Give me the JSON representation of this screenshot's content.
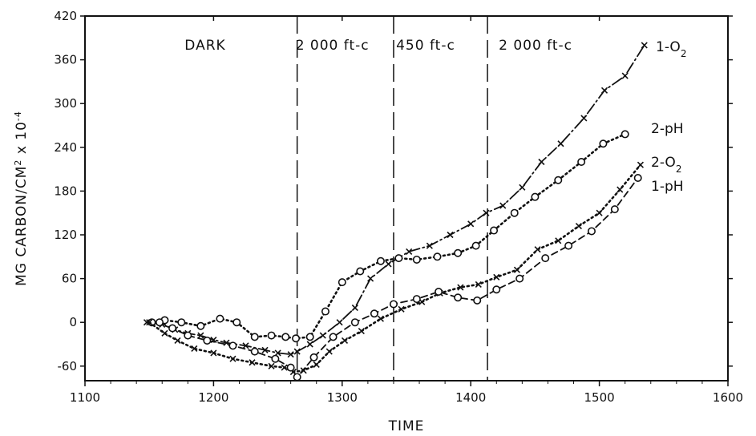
{
  "chart_data": {
    "type": "line",
    "title": "",
    "xlabel": "TIME",
    "ylabel_parts": {
      "main": "MG CARBON",
      "slash": "/",
      "unit": "CM",
      "unit_sup": "2",
      "mult": " x 10",
      "mult_sup": "-4"
    },
    "xlim": [
      1100,
      1600
    ],
    "ylim": [
      -80,
      420
    ],
    "x_ticks": [
      1100,
      1200,
      1300,
      1400,
      1500,
      1600
    ],
    "x_tick_labels": [
      "1100",
      "1200",
      "1300",
      "1400",
      "1500",
      "1600"
    ],
    "y_ticks": [
      -60,
      0,
      60,
      120,
      180,
      240,
      300,
      360,
      420
    ],
    "y_tick_labels": [
      "-60",
      "0",
      "60",
      "120",
      "180",
      "240",
      "300",
      "360",
      "420"
    ],
    "grid": false,
    "regions": [
      {
        "label": "DARK",
        "x_start": 1100,
        "x_end": 1265
      },
      {
        "label": "2 000 ft-c",
        "x_start": 1265,
        "x_end": 1340
      },
      {
        "label": "450 ft-c",
        "x_start": 1340,
        "x_end": 1413
      },
      {
        "label": "2 000 ft-c",
        "x_start": 1413,
        "x_end": 1600
      }
    ],
    "dividers_x": [
      1265,
      1340,
      1413
    ],
    "series": [
      {
        "name": "1-O",
        "name_sub": "2",
        "marker": "x",
        "line": "dashdot",
        "x": [
          1148,
          1160,
          1170,
          1180,
          1190,
          1200,
          1210,
          1225,
          1240,
          1250,
          1260,
          1265,
          1275,
          1285,
          1298,
          1310,
          1322,
          1336,
          1352,
          1368,
          1384,
          1400,
          1412,
          1425,
          1440,
          1455,
          1470,
          1488,
          1504,
          1520,
          1535
        ],
        "y": [
          0,
          -3,
          -10,
          -15,
          -18,
          -24,
          -28,
          -32,
          -38,
          -42,
          -44,
          -40,
          -30,
          -18,
          0,
          20,
          60,
          80,
          97,
          105,
          120,
          135,
          150,
          160,
          185,
          220,
          245,
          280,
          318,
          338,
          380
        ]
      },
      {
        "name": "2-pH",
        "marker": "o",
        "line": "dotted",
        "x": [
          1152,
          1162,
          1175,
          1190,
          1205,
          1218,
          1232,
          1245,
          1256,
          1264,
          1275,
          1287,
          1300,
          1314,
          1330,
          1344,
          1358,
          1374,
          1390,
          1404,
          1418,
          1434,
          1450,
          1468,
          1486,
          1503,
          1520
        ],
        "y": [
          0,
          3,
          0,
          -5,
          5,
          0,
          -20,
          -18,
          -20,
          -22,
          -20,
          15,
          55,
          70,
          84,
          88,
          86,
          90,
          95,
          105,
          126,
          150,
          172,
          195,
          220,
          245,
          258
        ]
      },
      {
        "name": "2-O",
        "name_sub": "2",
        "marker": "x",
        "line": "dotted",
        "x": [
          1150,
          1162,
          1172,
          1185,
          1200,
          1215,
          1230,
          1245,
          1255,
          1262,
          1270,
          1280,
          1290,
          1302,
          1315,
          1330,
          1346,
          1362,
          1376,
          1392,
          1406,
          1420,
          1436,
          1452,
          1468,
          1484,
          1500,
          1516,
          1532
        ],
        "y": [
          0,
          -15,
          -25,
          -36,
          -42,
          -50,
          -55,
          -60,
          -62,
          -68,
          -66,
          -58,
          -40,
          -25,
          -12,
          5,
          18,
          28,
          40,
          48,
          52,
          62,
          72,
          100,
          112,
          132,
          150,
          182,
          216
        ]
      },
      {
        "name": "1-pH",
        "marker": "o",
        "line": "dashed",
        "x": [
          1158,
          1168,
          1180,
          1195,
          1215,
          1232,
          1248,
          1260,
          1265,
          1278,
          1293,
          1310,
          1325,
          1340,
          1358,
          1375,
          1390,
          1405,
          1420,
          1438,
          1458,
          1476,
          1494,
          1512,
          1530
        ],
        "y": [
          0,
          -8,
          -18,
          -25,
          -32,
          -40,
          -50,
          -62,
          -75,
          -48,
          -20,
          0,
          12,
          25,
          32,
          42,
          34,
          30,
          45,
          60,
          88,
          105,
          125,
          155,
          198
        ]
      }
    ]
  }
}
